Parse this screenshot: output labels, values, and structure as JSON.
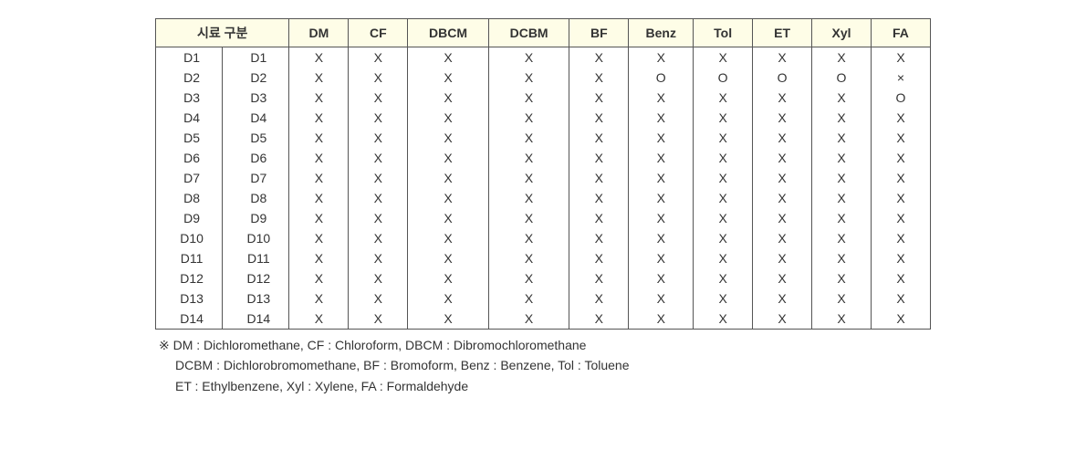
{
  "header": {
    "label": "시료 구분",
    "columns": [
      "DM",
      "CF",
      "DBCM",
      "DCBM",
      "BF",
      "Benz",
      "Tol",
      "ET",
      "Xyl",
      "FA"
    ]
  },
  "rows": [
    {
      "l1": "D1",
      "l2": "D1",
      "v": [
        "X",
        "X",
        "X",
        "X",
        "X",
        "X",
        "X",
        "X",
        "X",
        "X"
      ]
    },
    {
      "l1": "D2",
      "l2": "D2",
      "v": [
        "X",
        "X",
        "X",
        "X",
        "X",
        "O",
        "O",
        "O",
        "O",
        "×"
      ]
    },
    {
      "l1": "D3",
      "l2": "D3",
      "v": [
        "X",
        "X",
        "X",
        "X",
        "X",
        "X",
        "X",
        "X",
        "X",
        "O"
      ]
    },
    {
      "l1": "D4",
      "l2": "D4",
      "v": [
        "X",
        "X",
        "X",
        "X",
        "X",
        "X",
        "X",
        "X",
        "X",
        "X"
      ]
    },
    {
      "l1": "D5",
      "l2": "D5",
      "v": [
        "X",
        "X",
        "X",
        "X",
        "X",
        "X",
        "X",
        "X",
        "X",
        "X"
      ]
    },
    {
      "l1": "D6",
      "l2": "D6",
      "v": [
        "X",
        "X",
        "X",
        "X",
        "X",
        "X",
        "X",
        "X",
        "X",
        "X"
      ]
    },
    {
      "l1": "D7",
      "l2": "D7",
      "v": [
        "X",
        "X",
        "X",
        "X",
        "X",
        "X",
        "X",
        "X",
        "X",
        "X"
      ]
    },
    {
      "l1": "D8",
      "l2": "D8",
      "v": [
        "X",
        "X",
        "X",
        "X",
        "X",
        "X",
        "X",
        "X",
        "X",
        "X"
      ]
    },
    {
      "l1": "D9",
      "l2": "D9",
      "v": [
        "X",
        "X",
        "X",
        "X",
        "X",
        "X",
        "X",
        "X",
        "X",
        "X"
      ]
    },
    {
      "l1": "D10",
      "l2": "D10",
      "v": [
        "X",
        "X",
        "X",
        "X",
        "X",
        "X",
        "X",
        "X",
        "X",
        "X"
      ]
    },
    {
      "l1": "D11",
      "l2": "D11",
      "v": [
        "X",
        "X",
        "X",
        "X",
        "X",
        "X",
        "X",
        "X",
        "X",
        "X"
      ]
    },
    {
      "l1": "D12",
      "l2": "D12",
      "v": [
        "X",
        "X",
        "X",
        "X",
        "X",
        "X",
        "X",
        "X",
        "X",
        "X"
      ]
    },
    {
      "l1": "D13",
      "l2": "D13",
      "v": [
        "X",
        "X",
        "X",
        "X",
        "X",
        "X",
        "X",
        "X",
        "X",
        "X"
      ]
    },
    {
      "l1": "D14",
      "l2": "D14",
      "v": [
        "X",
        "X",
        "X",
        "X",
        "X",
        "X",
        "X",
        "X",
        "X",
        "X"
      ]
    }
  ],
  "legend": {
    "line1": "※ DM : Dichloromethane,   CF : Chloroform,   DBCM : Dibromochloromethane",
    "line2": "DCBM : Dichlorobromomethane,   BF : Bromoform,   Benz : Benzene,   Tol : Toluene",
    "line3": "ET : Ethylbenzene,  Xyl : Xylene,   FA : Formaldehyde"
  },
  "style": {
    "header_bg": "#fefde7",
    "border_color": "#555555",
    "text_color": "#333333",
    "font_size": 14
  }
}
